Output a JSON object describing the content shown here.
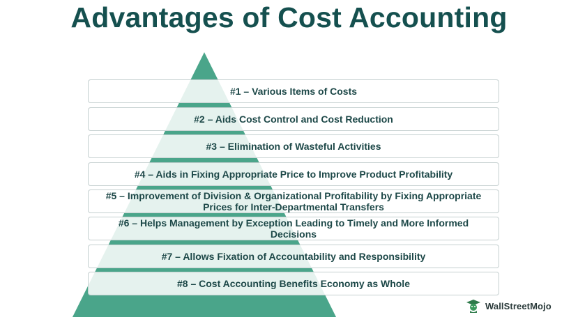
{
  "title": "Advantages of Cost Accounting",
  "items": [
    {
      "label": "#1 – Various Items of Costs"
    },
    {
      "label": "#2 – Aids Cost Control and Cost Reduction"
    },
    {
      "label": "#3 – Elimination of Wasteful Activities"
    },
    {
      "label": "#4 – Aids in Fixing Appropriate Price to Improve Product Profitability"
    },
    {
      "label": "#5 – Improvement of Division & Organizational Profitability by Fixing Appropriate Prices for Inter-Departmental Transfers"
    },
    {
      "label": "#6 – Helps Management by Exception Leading to Timely and More Informed Decisions"
    },
    {
      "label": "#7 – Allows Fixation of Accountability and Responsibility"
    },
    {
      "label": "#8 – Cost Accounting Benefits Economy as Whole"
    }
  ],
  "logo": {
    "text": "WallStreetMojo",
    "icon": "mojo-logo-icon"
  },
  "colors": {
    "title": "#15504f",
    "pyramid": "#4aa58a",
    "pyramid_light": "#eef6f4",
    "item_text": "#1d4848",
    "item_border": "#c4cfcf"
  }
}
